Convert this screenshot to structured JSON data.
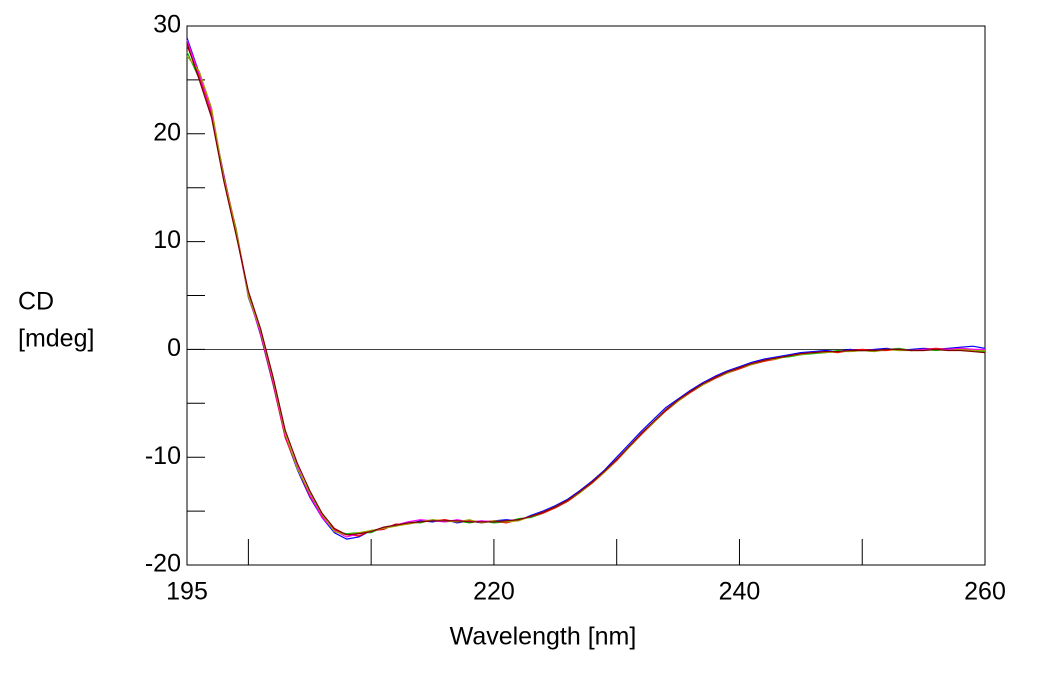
{
  "chart_data": {
    "type": "line",
    "xlabel": "Wavelength [nm]",
    "ylabel": [
      "CD",
      "[mdeg]"
    ],
    "x": [
      195,
      196,
      197,
      198,
      199,
      200,
      201,
      202,
      203,
      204,
      205,
      206,
      207,
      208,
      209,
      210,
      211,
      212,
      213,
      214,
      215,
      216,
      217,
      218,
      219,
      220,
      221,
      222,
      223,
      224,
      225,
      226,
      227,
      228,
      229,
      230,
      231,
      232,
      233,
      234,
      235,
      236,
      237,
      238,
      239,
      240,
      241,
      242,
      243,
      244,
      245,
      246,
      247,
      248,
      249,
      250,
      251,
      252,
      253,
      254,
      255,
      256,
      257,
      258,
      259,
      260
    ],
    "series": [
      {
        "color": "#0000ff",
        "values": [
          28.9,
          25.6,
          21.8,
          16.2,
          10.8,
          5.1,
          1.3,
          -3.2,
          -8.1,
          -11.2,
          -13.7,
          -15.6,
          -17.0,
          -17.6,
          -17.4,
          -16.8,
          -16.7,
          -16.2,
          -16.2,
          -15.9,
          -16.0,
          -15.8,
          -16.1,
          -15.9,
          -16.1,
          -15.9,
          -15.8,
          -15.9,
          -15.4,
          -15.0,
          -14.5,
          -13.9,
          -13.1,
          -12.2,
          -11.2,
          -10.0,
          -8.8,
          -7.6,
          -6.5,
          -5.4,
          -4.6,
          -3.8,
          -3.1,
          -2.5,
          -2.0,
          -1.6,
          -1.2,
          -0.9,
          -0.7,
          -0.5,
          -0.3,
          -0.2,
          -0.1,
          -0.2,
          0.0,
          -0.1,
          0.0,
          0.1,
          -0.1,
          0.0,
          0.1,
          0.0,
          0.1,
          0.2,
          0.3,
          0.1
        ]
      },
      {
        "color": "#00c000",
        "values": [
          27.6,
          25.1,
          22.2,
          15.8,
          11.2,
          4.8,
          1.6,
          -2.8,
          -7.9,
          -11.1,
          -13.4,
          -15.4,
          -16.9,
          -17.1,
          -17.0,
          -17.0,
          -16.5,
          -16.4,
          -16.0,
          -16.1,
          -15.8,
          -16.0,
          -15.9,
          -16.1,
          -15.9,
          -16.1,
          -16.0,
          -15.7,
          -15.6,
          -15.2,
          -14.7,
          -14.1,
          -13.3,
          -12.4,
          -11.4,
          -10.3,
          -9.1,
          -7.9,
          -6.8,
          -5.7,
          -4.8,
          -4.0,
          -3.3,
          -2.7,
          -2.2,
          -1.8,
          -1.4,
          -1.1,
          -0.8,
          -0.7,
          -0.5,
          -0.4,
          -0.3,
          -0.1,
          -0.2,
          -0.1,
          -0.2,
          0.0,
          0.1,
          -0.1,
          0.0,
          -0.1,
          0.0,
          0.0,
          -0.1,
          -0.2
        ]
      },
      {
        "color": "#ff0000",
        "values": [
          28.2,
          25.3,
          21.9,
          16.1,
          11.1,
          5.2,
          1.4,
          -3.1,
          -8.2,
          -11.0,
          -13.6,
          -15.5,
          -16.7,
          -17.2,
          -17.3,
          -16.8,
          -16.7,
          -16.2,
          -16.2,
          -16.0,
          -15.9,
          -15.8,
          -16.0,
          -15.9,
          -16.0,
          -15.9,
          -16.1,
          -15.8,
          -15.5,
          -15.2,
          -14.7,
          -14.1,
          -13.3,
          -12.4,
          -11.4,
          -10.3,
          -9.1,
          -7.9,
          -6.8,
          -5.7,
          -4.8,
          -4.0,
          -3.3,
          -2.7,
          -2.2,
          -1.8,
          -1.4,
          -1.1,
          -0.9,
          -0.6,
          -0.4,
          -0.3,
          -0.2,
          -0.3,
          -0.1,
          0.0,
          -0.1,
          -0.1,
          0.0,
          -0.1,
          0.0,
          0.1,
          0.0,
          0.1,
          0.0,
          -0.1
        ]
      },
      {
        "color": "#ff00ff",
        "values": [
          28.7,
          25.5,
          22.1,
          16.0,
          10.9,
          4.9,
          1.5,
          -2.9,
          -8.0,
          -10.9,
          -13.5,
          -15.6,
          -16.8,
          -17.4,
          -17.1,
          -16.9,
          -16.5,
          -16.3,
          -16.0,
          -15.8,
          -15.9,
          -16.0,
          -15.8,
          -16.0,
          -15.9,
          -16.0,
          -15.9,
          -15.8,
          -15.5,
          -15.1,
          -14.6,
          -14.0,
          -13.2,
          -12.3,
          -11.3,
          -10.2,
          -9.0,
          -7.8,
          -6.7,
          -5.6,
          -4.7,
          -3.9,
          -3.2,
          -2.6,
          -2.1,
          -1.7,
          -1.3,
          -1.0,
          -0.8,
          -0.6,
          -0.4,
          -0.3,
          -0.2,
          -0.2,
          -0.1,
          -0.1,
          -0.1,
          0.0,
          0.0,
          -0.1,
          0.0,
          0.0,
          0.0,
          0.1,
          0.0,
          0.0
        ]
      },
      {
        "color": "#a0a000",
        "values": [
          27.2,
          25.8,
          22.4,
          15.9,
          11.0,
          5.0,
          1.7,
          -2.7,
          -7.8,
          -11.1,
          -13.3,
          -15.3,
          -16.9,
          -17.2,
          -17.0,
          -16.8,
          -16.6,
          -16.4,
          -16.2,
          -16.0,
          -15.8,
          -15.9,
          -16.0,
          -15.8,
          -16.1,
          -15.9,
          -16.0,
          -15.9,
          -15.5,
          -15.1,
          -14.6,
          -14.0,
          -13.3,
          -12.3,
          -11.4,
          -10.2,
          -9.1,
          -7.8,
          -6.8,
          -5.6,
          -4.8,
          -3.9,
          -3.3,
          -2.6,
          -2.2,
          -1.7,
          -1.4,
          -1.0,
          -0.9,
          -0.6,
          -0.5,
          -0.3,
          -0.3,
          -0.2,
          -0.2,
          -0.1,
          -0.2,
          0.0,
          -0.1,
          -0.1,
          -0.1,
          0.0,
          -0.1,
          0.0,
          -0.1,
          -0.1
        ]
      },
      {
        "color": "#800000",
        "values": [
          28.4,
          25.0,
          21.5,
          15.6,
          10.6,
          5.4,
          1.9,
          -2.5,
          -7.5,
          -10.6,
          -13.1,
          -15.2,
          -16.6,
          -17.2,
          -17.1,
          -16.9,
          -16.5,
          -16.3,
          -16.1,
          -16.0,
          -15.9,
          -15.9,
          -15.9,
          -16.0,
          -16.0,
          -16.0,
          -15.9,
          -15.8,
          -15.5,
          -15.1,
          -14.6,
          -14.0,
          -13.2,
          -12.3,
          -11.3,
          -10.2,
          -9.0,
          -7.8,
          -6.7,
          -5.6,
          -4.7,
          -3.9,
          -3.2,
          -2.6,
          -2.1,
          -1.7,
          -1.3,
          -1.0,
          -0.8,
          -0.6,
          -0.4,
          -0.3,
          -0.2,
          -0.2,
          -0.1,
          -0.1,
          -0.1,
          0.0,
          0.0,
          -0.1,
          -0.1,
          0.0,
          -0.1,
          -0.1,
          -0.2,
          -0.3
        ]
      }
    ],
    "xlim": [
      195,
      260
    ],
    "ylim": [
      -20,
      30
    ],
    "xticks": [
      195,
      220,
      240,
      260
    ],
    "x_minor_ticks": [
      200,
      210,
      230,
      250
    ],
    "yticks": [
      -20,
      -10,
      0,
      10,
      20,
      30
    ],
    "y_minor_ticks": [
      -15,
      -5,
      5,
      15,
      25
    ],
    "zero_line": true,
    "grid": false
  }
}
